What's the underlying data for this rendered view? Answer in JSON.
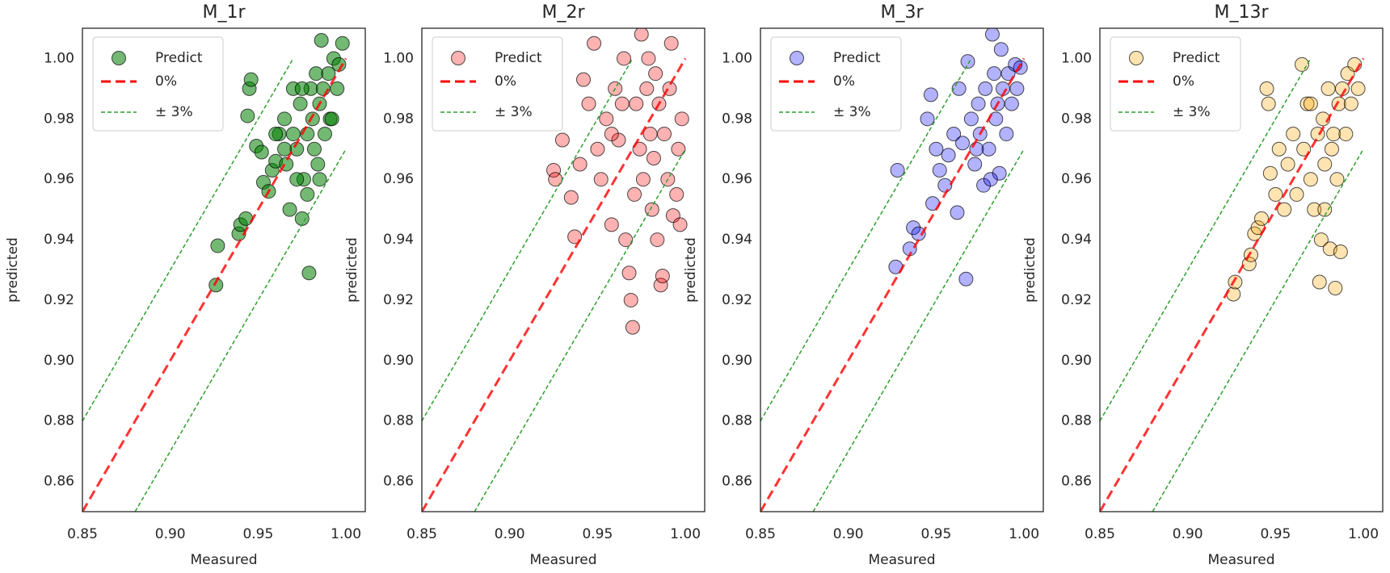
{
  "chart_data": [
    {
      "type": "scatter",
      "title": "M_1r",
      "x_label": "Measured",
      "y_label": "predicted",
      "xlim": [
        0.85,
        1.011
      ],
      "ylim": [
        0.85,
        1.01
      ],
      "xticks": [
        0.85,
        {
          "value": 0.9,
          "label": "0.90"
        },
        0.95,
        {
          "value": 1,
          "label": "1.00"
        }
      ],
      "yticks": [
        0.86,
        0.88,
        {
          "value": 0.9,
          "label": "0.90"
        },
        0.92,
        0.94,
        0.96,
        0.98,
        {
          "value": 1,
          "label": "1.00"
        }
      ],
      "legend": "upper left",
      "series": [
        {
          "name": "Predict",
          "color": "green",
          "opacity": 0.55,
          "x": [
            0.926,
            0.927,
            0.939,
            0.94,
            0.943,
            0.945,
            0.946,
            0.944,
            0.949,
            0.952,
            0.953,
            0.956,
            0.958,
            0.96,
            0.962,
            0.965,
            0.966,
            0.968,
            0.97,
            0.972,
            0.974,
            0.975,
            0.976,
            0.978,
            0.979,
            0.98,
            0.981,
            0.982,
            0.983,
            0.984,
            0.985,
            0.986,
            0.987,
            0.988,
            0.99,
            0.991,
            0.993,
            0.995,
            0.996,
            0.998,
            0.975,
            0.97,
            0.965,
            0.96,
            0.985,
            0.978,
            0.992,
            0.972
          ],
          "y": [
            0.925,
            0.938,
            0.942,
            0.945,
            0.947,
            0.99,
            0.993,
            0.981,
            0.971,
            0.969,
            0.959,
            0.956,
            0.963,
            0.966,
            0.975,
            0.98,
            0.965,
            0.95,
            0.99,
            0.97,
            0.985,
            0.947,
            0.96,
            0.975,
            0.929,
            0.99,
            0.98,
            0.97,
            0.995,
            0.965,
            0.985,
            1.006,
            0.99,
            0.975,
            0.995,
            0.98,
            1.0,
            0.99,
            0.998,
            1.005,
            0.99,
            0.975,
            0.97,
            0.975,
            0.96,
            0.955,
            0.98,
            0.96
          ]
        }
      ],
      "lines": [
        {
          "name": "0%",
          "color": "red",
          "linestyle": "--",
          "x": [
            0.85,
            1.0
          ],
          "y": [
            0.85,
            1.0
          ]
        },
        {
          "name": "± 3%",
          "color": "#2ca02c",
          "linestyle": ":",
          "x": [
            0.85,
            0.97,
            null,
            0.88,
            1.0
          ],
          "y": [
            0.88,
            1.0,
            null,
            0.85,
            0.97
          ]
        }
      ]
    },
    {
      "type": "scatter",
      "title": "M_2r",
      "x_label": "Measured",
      "y_label": "predicted",
      "xlim": [
        0.85,
        1.011
      ],
      "ylim": [
        0.85,
        1.01
      ],
      "xticks": [
        0.85,
        {
          "value": 0.9,
          "label": "0.90"
        },
        0.95,
        {
          "value": 1,
          "label": "1.00"
        }
      ],
      "yticks": [
        0.86,
        0.88,
        {
          "value": 0.9,
          "label": "0.90"
        },
        0.92,
        0.94,
        0.96,
        0.98,
        {
          "value": 1,
          "label": "1.00"
        }
      ],
      "legend": "upper left",
      "series": [
        {
          "name": "Predict",
          "color": "red",
          "opacity": 0.3,
          "x": [
            0.925,
            0.926,
            0.93,
            0.935,
            0.937,
            0.94,
            0.942,
            0.945,
            0.948,
            0.95,
            0.952,
            0.955,
            0.958,
            0.96,
            0.962,
            0.965,
            0.966,
            0.968,
            0.969,
            0.97,
            0.971,
            0.972,
            0.974,
            0.975,
            0.976,
            0.978,
            0.98,
            0.981,
            0.982,
            0.983,
            0.984,
            0.985,
            0.986,
            0.987,
            0.988,
            0.99,
            0.991,
            0.993,
            0.995,
            0.996,
            0.997,
            0.998,
            0.992,
            0.979,
            0.964,
            0.958
          ],
          "y": [
            0.963,
            0.96,
            0.973,
            0.954,
            0.941,
            0.965,
            0.993,
            0.985,
            1.005,
            0.97,
            0.96,
            0.98,
            0.945,
            0.99,
            0.973,
            1.0,
            0.94,
            0.929,
            0.92,
            0.911,
            0.955,
            0.985,
            0.97,
            1.008,
            0.96,
            0.99,
            0.975,
            0.95,
            0.967,
            0.995,
            0.94,
            0.985,
            0.925,
            0.928,
            0.975,
            0.96,
            0.99,
            0.948,
            0.955,
            0.97,
            0.945,
            0.98,
            1.005,
            1.0,
            0.985,
            0.975
          ]
        }
      ],
      "lines": [
        {
          "name": "0%",
          "color": "red",
          "linestyle": "--",
          "x": [
            0.85,
            1.0
          ],
          "y": [
            0.85,
            1.0
          ]
        },
        {
          "name": "± 3%",
          "color": "#2ca02c",
          "linestyle": ":",
          "x": [
            0.85,
            0.97,
            null,
            0.88,
            1.0
          ],
          "y": [
            0.88,
            1.0,
            null,
            0.85,
            0.97
          ]
        }
      ]
    },
    {
      "type": "scatter",
      "title": "M_3r",
      "x_label": "Measured",
      "y_label": "predicted",
      "xlim": [
        0.85,
        1.011
      ],
      "ylim": [
        0.85,
        1.01
      ],
      "xticks": [
        0.85,
        {
          "value": 0.9,
          "label": "0.90"
        },
        0.95,
        {
          "value": 1,
          "label": "1.00"
        }
      ],
      "yticks": [
        0.86,
        0.88,
        {
          "value": 0.9,
          "label": "0.90"
        },
        0.92,
        0.94,
        0.96,
        0.98,
        {
          "value": 1,
          "label": "1.00"
        }
      ],
      "legend": "upper left",
      "series": [
        {
          "name": "Predict",
          "color": "blue",
          "opacity": 0.3,
          "x": [
            0.927,
            0.928,
            0.935,
            0.937,
            0.94,
            0.945,
            0.947,
            0.948,
            0.95,
            0.952,
            0.955,
            0.957,
            0.96,
            0.962,
            0.963,
            0.965,
            0.967,
            0.968,
            0.97,
            0.972,
            0.974,
            0.975,
            0.977,
            0.978,
            0.98,
            0.982,
            0.983,
            0.984,
            0.985,
            0.986,
            0.987,
            0.988,
            0.99,
            0.991,
            0.993,
            0.995,
            0.996,
            0.998,
            0.981,
            0.973
          ],
          "y": [
            0.931,
            0.963,
            0.937,
            0.944,
            0.942,
            0.98,
            0.988,
            0.952,
            0.97,
            0.963,
            0.958,
            0.968,
            0.975,
            0.949,
            0.99,
            0.972,
            0.927,
            0.999,
            0.98,
            0.965,
            0.985,
            0.975,
            0.958,
            0.99,
            0.97,
            1.008,
            0.995,
            0.98,
            0.985,
            0.962,
            1.003,
            0.99,
            0.975,
            0.995,
            0.985,
            0.998,
            0.99,
            0.997,
            0.96,
            0.97
          ]
        }
      ],
      "lines": [
        {
          "name": "0%",
          "color": "red",
          "linestyle": "--",
          "x": [
            0.85,
            1.0
          ],
          "y": [
            0.85,
            1.0
          ]
        },
        {
          "name": "± 3%",
          "color": "#2ca02c",
          "linestyle": ":",
          "x": [
            0.85,
            0.97,
            null,
            0.88,
            1.0
          ],
          "y": [
            0.88,
            1.0,
            null,
            0.85,
            0.97
          ]
        }
      ]
    },
    {
      "type": "scatter",
      "title": "M_13r",
      "x_label": "Measured",
      "y_label": "predicted",
      "xlim": [
        0.85,
        1.011
      ],
      "ylim": [
        0.85,
        1.01
      ],
      "xticks": [
        0.85,
        {
          "value": 0.9,
          "label": "0.90"
        },
        0.95,
        {
          "value": 1,
          "label": "1.00"
        }
      ],
      "yticks": [
        0.86,
        0.88,
        {
          "value": 0.9,
          "label": "0.90"
        },
        0.92,
        0.94,
        0.96,
        0.98,
        {
          "value": 1,
          "label": "1.00"
        }
      ],
      "legend": "upper left",
      "series": [
        {
          "name": "Predict",
          "color": "orange",
          "opacity": 0.3,
          "x": [
            0.926,
            0.927,
            0.935,
            0.936,
            0.938,
            0.94,
            0.942,
            0.945,
            0.946,
            0.947,
            0.95,
            0.952,
            0.955,
            0.957,
            0.96,
            0.962,
            0.965,
            0.966,
            0.968,
            0.97,
            0.972,
            0.974,
            0.975,
            0.976,
            0.977,
            0.978,
            0.98,
            0.981,
            0.982,
            0.983,
            0.984,
            0.985,
            0.986,
            0.987,
            0.988,
            0.99,
            0.991,
            0.993,
            0.995,
            0.997,
            0.978,
            0.97
          ],
          "y": [
            0.922,
            0.926,
            0.932,
            0.935,
            0.942,
            0.944,
            0.947,
            0.99,
            0.985,
            0.962,
            0.955,
            0.97,
            0.95,
            0.965,
            0.975,
            0.955,
            0.998,
            0.97,
            0.985,
            0.96,
            0.95,
            0.975,
            0.926,
            0.94,
            0.98,
            0.965,
            0.99,
            0.937,
            0.97,
            0.975,
            0.924,
            0.96,
            0.985,
            0.936,
            0.99,
            0.975,
            0.995,
            0.985,
            0.998,
            0.99,
            0.95,
            0.985
          ]
        }
      ],
      "lines": [
        {
          "name": "0%",
          "color": "red",
          "linestyle": "--",
          "x": [
            0.85,
            1.0
          ],
          "y": [
            0.85,
            1.0
          ]
        },
        {
          "name": "± 3%",
          "color": "#2ca02c",
          "linestyle": ":",
          "x": [
            0.85,
            0.97,
            null,
            0.88,
            1.0
          ],
          "y": [
            0.88,
            1.0,
            null,
            0.85,
            0.97
          ]
        }
      ]
    }
  ]
}
